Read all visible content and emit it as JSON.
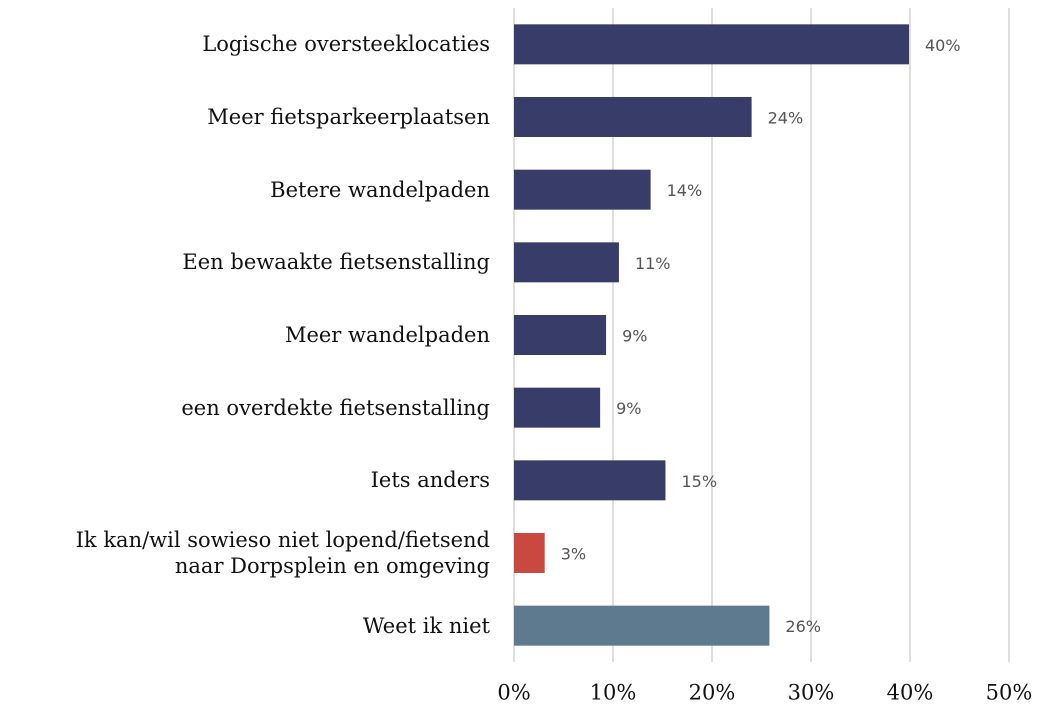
{
  "chart_data": {
    "type": "barh",
    "categories": [
      "Logische oversteeklocaties",
      "Meer fietsparkeerplaatsen",
      "Betere wandelpaden",
      "Een bewaakte fietsenstalling",
      "Meer wandelpaden",
      "een overdekte fietsenstalling",
      "Iets anders",
      "Ik kan/wil sowieso niet lopend/fietsend\nnaar Dorpsplein en omgeving",
      "Weet ik niet"
    ],
    "values": [
      39.9,
      24.0,
      13.8,
      10.6,
      9.3,
      8.7,
      15.3,
      3.1,
      25.8
    ],
    "value_labels": [
      "40%",
      "24%",
      "14%",
      "11%",
      "9%",
      "9%",
      "15%",
      "3%",
      "26%"
    ],
    "colors": [
      "#383c68",
      "#383c68",
      "#383c68",
      "#383c68",
      "#383c68",
      "#383c68",
      "#383c68",
      "#c9483f",
      "#5e7a8e"
    ],
    "xlim": [
      0,
      50
    ],
    "xticks": [
      {
        "value": 0,
        "label": "0%"
      },
      {
        "value": 10,
        "label": "10%"
      },
      {
        "value": 20,
        "label": "20%"
      },
      {
        "value": 30,
        "label": "30%"
      },
      {
        "value": 40,
        "label": "40%"
      },
      {
        "value": 50,
        "label": "50%"
      }
    ],
    "grid": true
  }
}
